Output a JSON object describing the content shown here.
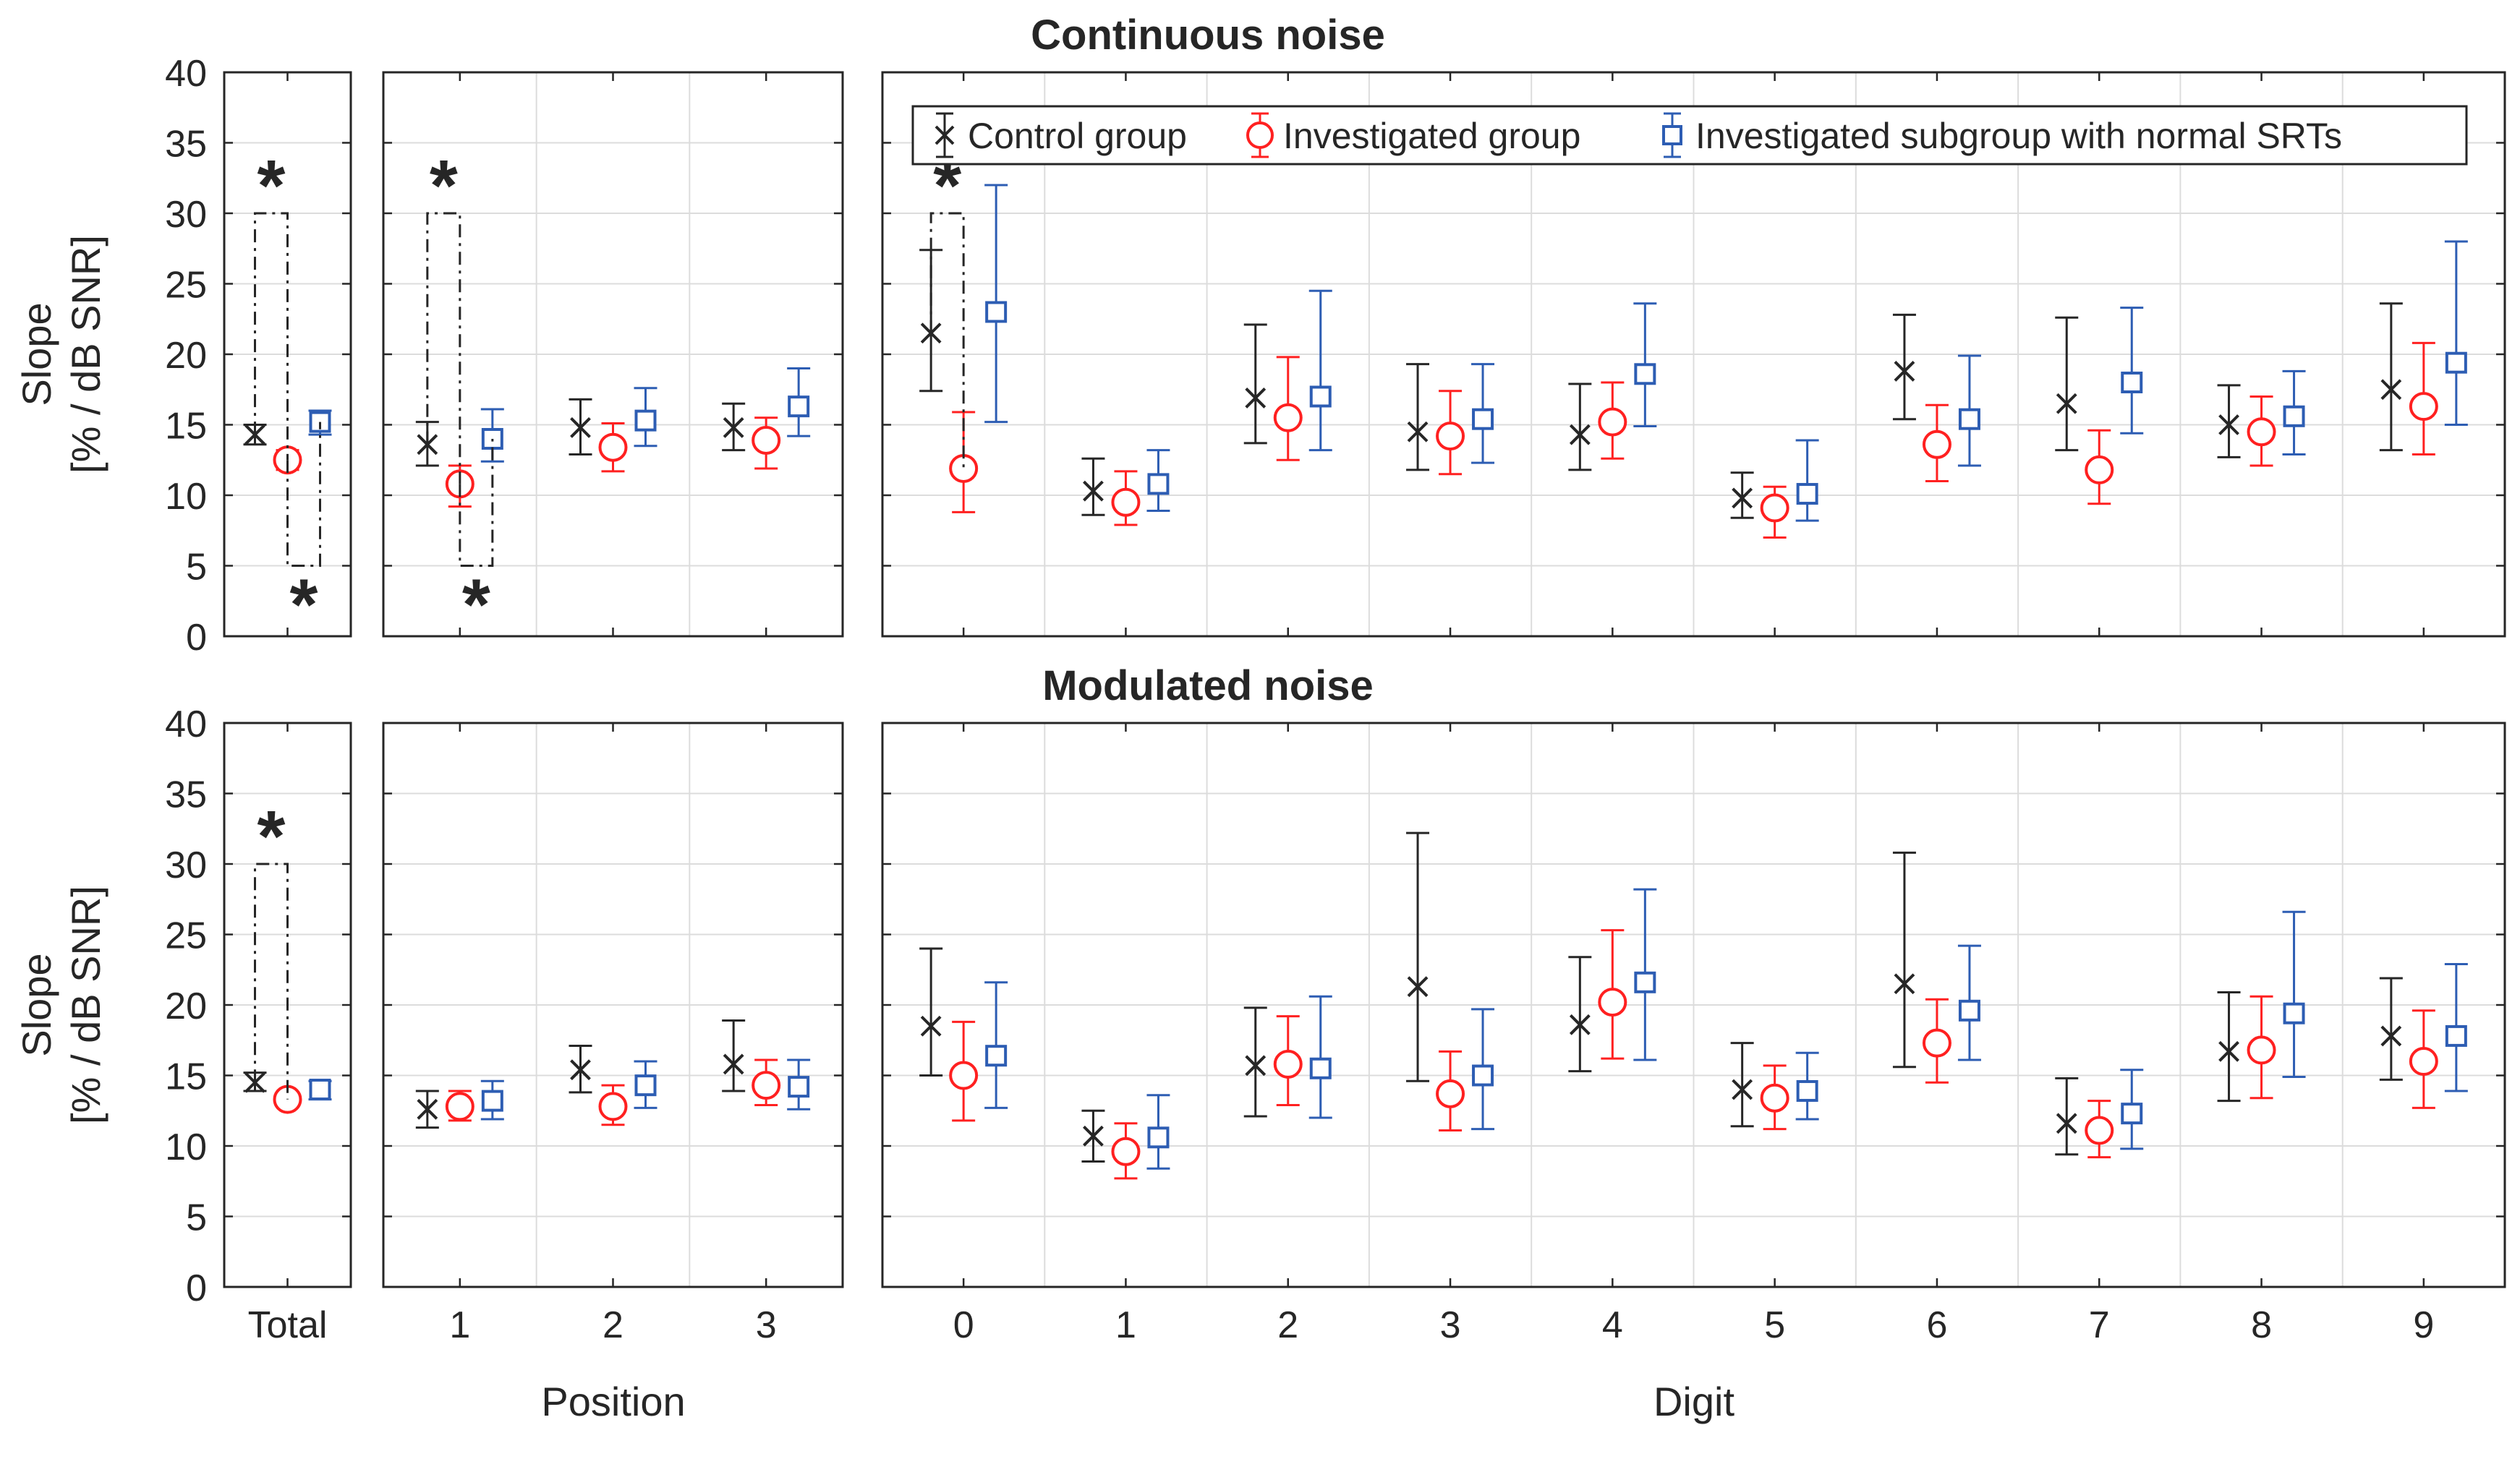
{
  "figure": {
    "legend": [
      {
        "label": "Control group",
        "color": "#262626",
        "marker": "x"
      },
      {
        "label": "Investigated group",
        "color": "#ff2020",
        "marker": "o"
      },
      {
        "label": "Investigated subgroup with normal SRTs",
        "color": "#2d5db3",
        "marker": "s"
      }
    ],
    "ylabel_line1": "Slope",
    "ylabel_line2": "[% / dB SNR]",
    "xlabel_position": "Position",
    "xlabel_digit": "Digit"
  },
  "chart_data": [
    {
      "type": "errorbar",
      "title": "Continuous noise",
      "ylim": [
        0,
        40
      ],
      "yticks": [
        "0",
        "5",
        "10",
        "15",
        "20",
        "25",
        "30",
        "35",
        "40"
      ],
      "grid": true,
      "series_names": [
        "Control group",
        "Investigated group",
        "Investigated subgroup with normal SRTs"
      ],
      "panels": {
        "total": {
          "categories": [
            "Total"
          ],
          "series": [
            {
              "name": "Control group",
              "mean": [
                14.3
              ],
              "lower": [
                13.6
              ],
              "upper": [
                15.0
              ]
            },
            {
              "name": "Investigated group",
              "mean": [
                12.5
              ],
              "lower": [
                11.8
              ],
              "upper": [
                13.2
              ]
            },
            {
              "name": "Investigated subgroup with normal SRTs",
              "mean": [
                15.2
              ],
              "lower": [
                14.3
              ],
              "upper": [
                16.0
              ]
            }
          ],
          "significance": [
            {
              "from": 0,
              "to": 1,
              "level": 30,
              "side": "top",
              "symbol": "*"
            },
            {
              "from": 1,
              "to": 2,
              "level": 5,
              "side": "bottom",
              "symbol": "*"
            }
          ]
        },
        "position": {
          "categories": [
            "1",
            "2",
            "3"
          ],
          "series": [
            {
              "name": "Control group",
              "mean": [
                13.6,
                14.8,
                14.8
              ],
              "lower": [
                12.1,
                12.9,
                13.2
              ],
              "upper": [
                15.2,
                16.8,
                16.5
              ]
            },
            {
              "name": "Investigated group",
              "mean": [
                10.8,
                13.4,
                13.9
              ],
              "lower": [
                9.2,
                11.7,
                11.9
              ],
              "upper": [
                12.1,
                15.1,
                15.5
              ]
            },
            {
              "name": "Investigated subgroup with normal SRTs",
              "mean": [
                14.0,
                15.3,
                16.3
              ],
              "lower": [
                12.4,
                13.5,
                14.2
              ],
              "upper": [
                16.1,
                17.6,
                19.0
              ]
            }
          ],
          "significance": [
            {
              "cat": 0,
              "from": 0,
              "to": 1,
              "level": 30,
              "side": "top",
              "symbol": "*"
            },
            {
              "cat": 0,
              "from": 1,
              "to": 2,
              "level": 5,
              "side": "bottom",
              "symbol": "*"
            }
          ]
        },
        "digit": {
          "categories": [
            "0",
            "1",
            "2",
            "3",
            "4",
            "5",
            "6",
            "7",
            "8",
            "9"
          ],
          "series": [
            {
              "name": "Control group",
              "mean": [
                21.5,
                10.3,
                16.9,
                14.5,
                14.3,
                9.8,
                18.8,
                16.5,
                15.0,
                17.5
              ],
              "lower": [
                17.4,
                8.6,
                13.7,
                11.8,
                11.8,
                8.4,
                15.4,
                13.2,
                12.7,
                13.2
              ],
              "upper": [
                27.4,
                12.6,
                22.1,
                19.3,
                17.9,
                11.6,
                22.8,
                22.6,
                17.8,
                23.6
              ]
            },
            {
              "name": "Investigated group",
              "mean": [
                11.9,
                9.5,
                15.5,
                14.2,
                15.2,
                9.1,
                13.6,
                11.8,
                14.5,
                16.3
              ],
              "lower": [
                8.8,
                7.9,
                12.5,
                11.5,
                12.6,
                7.0,
                11.0,
                9.4,
                12.1,
                12.9
              ],
              "upper": [
                15.9,
                11.7,
                19.8,
                17.4,
                18.0,
                10.6,
                16.4,
                14.6,
                17.0,
                20.8
              ]
            },
            {
              "name": "Investigated subgroup with normal SRTs",
              "mean": [
                23.0,
                10.8,
                17.0,
                15.4,
                18.6,
                10.1,
                15.4,
                18.0,
                15.6,
                19.4
              ],
              "lower": [
                15.2,
                8.9,
                13.2,
                12.3,
                14.9,
                8.2,
                12.1,
                14.4,
                12.9,
                15.0
              ],
              "upper": [
                32.0,
                13.2,
                24.5,
                19.3,
                23.6,
                13.9,
                19.9,
                23.3,
                18.8,
                28.0
              ]
            }
          ],
          "significance": [
            {
              "cat": 0,
              "from": 0,
              "to": 1,
              "level": 30,
              "side": "top",
              "symbol": "*"
            }
          ]
        }
      }
    },
    {
      "type": "errorbar",
      "title": "Modulated noise",
      "ylim": [
        0,
        40
      ],
      "yticks": [
        "0",
        "5",
        "10",
        "15",
        "20",
        "25",
        "30",
        "35",
        "40"
      ],
      "grid": true,
      "series_names": [
        "Control group",
        "Investigated group",
        "Investigated subgroup with normal SRTs"
      ],
      "panels": {
        "total": {
          "categories": [
            "Total"
          ],
          "series": [
            {
              "name": "Control group",
              "mean": [
                14.5
              ],
              "lower": [
                13.9
              ],
              "upper": [
                15.2
              ]
            },
            {
              "name": "Investigated group",
              "mean": [
                13.3
              ],
              "lower": [
                12.8
              ],
              "upper": [
                13.8
              ]
            },
            {
              "name": "Investigated subgroup with normal SRTs",
              "mean": [
                14.0
              ],
              "lower": [
                13.3
              ],
              "upper": [
                14.6
              ]
            }
          ],
          "significance": [
            {
              "from": 0,
              "to": 1,
              "level": 30,
              "side": "top",
              "symbol": "*"
            }
          ]
        },
        "position": {
          "categories": [
            "1",
            "2",
            "3"
          ],
          "series": [
            {
              "name": "Control group",
              "mean": [
                12.6,
                15.4,
                15.8
              ],
              "lower": [
                11.3,
                13.8,
                13.9
              ],
              "upper": [
                13.9,
                17.1,
                18.9
              ]
            },
            {
              "name": "Investigated group",
              "mean": [
                12.8,
                12.8,
                14.3
              ],
              "lower": [
                11.8,
                11.5,
                12.9
              ],
              "upper": [
                13.9,
                14.3,
                16.1
              ]
            },
            {
              "name": "Investigated subgroup with normal SRTs",
              "mean": [
                13.2,
                14.3,
                14.2
              ],
              "lower": [
                11.9,
                12.7,
                12.6
              ],
              "upper": [
                14.6,
                16.0,
                16.1
              ]
            }
          ],
          "significance": []
        },
        "digit": {
          "categories": [
            "0",
            "1",
            "2",
            "3",
            "4",
            "5",
            "6",
            "7",
            "8",
            "9"
          ],
          "series": [
            {
              "name": "Control group",
              "mean": [
                18.5,
                10.7,
                15.7,
                21.3,
                18.6,
                14.0,
                21.5,
                11.6,
                16.7,
                17.8
              ],
              "lower": [
                15.0,
                8.9,
                12.1,
                14.6,
                15.3,
                11.4,
                15.6,
                9.4,
                13.2,
                14.7
              ],
              "upper": [
                24.0,
                12.5,
                19.8,
                32.2,
                23.4,
                17.3,
                30.8,
                14.8,
                20.9,
                21.9
              ]
            },
            {
              "name": "Investigated group",
              "mean": [
                15.0,
                9.6,
                15.8,
                13.7,
                20.2,
                13.4,
                17.3,
                11.1,
                16.8,
                16.0
              ],
              "lower": [
                11.8,
                7.7,
                12.9,
                11.1,
                16.2,
                11.2,
                14.5,
                9.2,
                13.4,
                12.7
              ],
              "upper": [
                18.8,
                11.6,
                19.2,
                16.7,
                25.3,
                15.7,
                20.4,
                13.2,
                20.6,
                19.6
              ]
            },
            {
              "name": "Investigated subgroup with normal SRTs",
              "mean": [
                16.4,
                10.6,
                15.5,
                15.0,
                21.6,
                13.9,
                19.6,
                12.3,
                19.4,
                17.8
              ],
              "lower": [
                12.7,
                8.4,
                12.0,
                11.2,
                16.1,
                11.9,
                16.1,
                9.8,
                14.9,
                13.9
              ],
              "upper": [
                21.6,
                13.6,
                20.6,
                19.7,
                28.2,
                16.6,
                24.2,
                15.4,
                26.6,
                22.9
              ]
            }
          ],
          "significance": []
        }
      }
    }
  ]
}
